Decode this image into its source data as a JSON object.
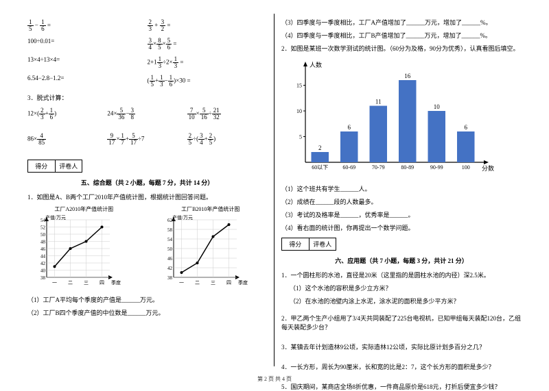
{
  "left": {
    "equations": [
      {
        "a": "1/5 − 1/6 =",
        "b": "2/3 + 3/2 ="
      },
      {
        "a": "100÷0.01=",
        "b": "3/4 × 8/5 × 5/6 ="
      },
      {
        "a": "13×4÷13×4=",
        "b": "2 + 1 1/3 ÷ 2 × 1/3 ="
      },
      {
        "a": "6.54−2.8−1.2=",
        "b": "(1/5 + 1/3 − 1/6) × 30 ="
      }
    ],
    "p3_title": "3．脱式计算：",
    "p3": [
      {
        "a": "12×(2/3 + 1/6)",
        "b": "24× 5/36 − 3/8",
        "c": "7/10 × 5/16 ÷ 21/32"
      },
      {
        "a": "86× 4/85",
        "b": "9/17 × 1/7 + 5/17 ÷7",
        "c": "2/5 ÷ (3/4 + 2/5)"
      }
    ],
    "score_labels": {
      "s": "得分",
      "r": "评卷人"
    },
    "section5": "五、综合题（共 2 小题，每题 7 分，共计 14 分）",
    "q1": "1．如图是A、B两个工厂2010年产值统计图，根据统计图回答问题。",
    "chartA": {
      "title": "工厂A2010年产值统计图",
      "ylabel": "产值/万元",
      "xlabel": "季度",
      "yticks": [
        38,
        40,
        42,
        44,
        46,
        48,
        50,
        52,
        54
      ],
      "xticks": [
        "一",
        "二",
        "三",
        "四"
      ],
      "values": [
        41,
        46,
        48,
        52
      ],
      "line_color": "#000000",
      "bg": "#ffffff"
    },
    "chartB": {
      "title": "工厂B2010年产值统计图",
      "ylabel": "产值/万元",
      "xlabel": "季度",
      "yticks": [
        38,
        42,
        46,
        50,
        54,
        58,
        62
      ],
      "xticks": [
        "一",
        "二",
        "三",
        "四"
      ],
      "values": [
        40,
        44,
        55,
        60
      ],
      "line_color": "#000000",
      "bg": "#ffffff"
    },
    "sub1": "（1）工厂A平均每个季度的产值是______万元。",
    "sub2": "（2）工厂B四个季度产值的中位数是______万元。"
  },
  "right": {
    "sub3": "（3）四季度与一季度相比，工厂A产值增加了______万元，增加了______%。",
    "sub4": "（4）四季度与一季度相比，工厂B产值增加了______万元，增加了______%。",
    "q2": "2．如图是某班一次数学测试的统计图。（60分为及格，90分为优秀），认真看图后填空。",
    "bar": {
      "ylabel": "人数",
      "xlabel": "分数",
      "xticks": [
        "60以下",
        "60-69",
        "70-79",
        "80-89",
        "90-99",
        "100"
      ],
      "yticks": [
        5,
        10,
        15
      ],
      "values": [
        2,
        6,
        11,
        16,
        10,
        6
      ],
      "show_values": true,
      "bar_color": "#4472c4",
      "axis_color": "#000000",
      "value_fontsize": 9,
      "label_fontsize": 8
    },
    "bar_sub1": "（1）这个班共有学生______人。",
    "bar_sub2": "（2）成绩在______段的人数最多。",
    "bar_sub3": "（3）考试的及格率是______，优秀率是______。",
    "bar_sub4": "（4）看右面的统计图，你再提出一个数学问题。",
    "score_labels": {
      "s": "得分",
      "r": "评卷人"
    },
    "section6": "六、应用题（共 7 小题，每题 3 分，共计 21 分）",
    "q6_1": "1．一个圆柱形的水池，直径是20米（这里指的是圆柱水池的内径）深2.5米。",
    "q6_1a": "（1）这个水池的容积是多少立方米？",
    "q6_1b": "（2）在水池的池壁内涂上水泥，涂水泥的面积是多少平方米？",
    "q6_2": "2．甲乙两个生产小组用了3/4天共同装配了225台电视机，已知甲组每天装配120台，乙组每天装配多少台？",
    "q6_3": "3．某镇去年计划造林9公顷，实际造林12公顷，实际比原计划多百分之几？",
    "q6_4": "4．一长方形，周长为90厘米，长和宽的比是2：7，这个长方形的面积是多少？",
    "q6_5": "5．国庆期间，某商店全场8折优惠，一件商品原价是618元，打折后便宜多少钱？"
  },
  "footer": "第 2 页 共 4 页"
}
